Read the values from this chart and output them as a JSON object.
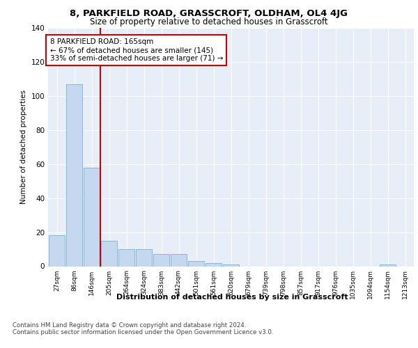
{
  "title_line1": "8, PARKFIELD ROAD, GRASSCROFT, OLDHAM, OL4 4JG",
  "title_line2": "Size of property relative to detached houses in Grasscroft",
  "xlabel": "Distribution of detached houses by size in Grasscroft",
  "ylabel": "Number of detached properties",
  "bar_color": "#c5d8f0",
  "bar_edge_color": "#7bafd4",
  "categories": [
    "27sqm",
    "86sqm",
    "146sqm",
    "205sqm",
    "264sqm",
    "324sqm",
    "383sqm",
    "442sqm",
    "501sqm",
    "561sqm",
    "620sqm",
    "679sqm",
    "739sqm",
    "798sqm",
    "857sqm",
    "917sqm",
    "976sqm",
    "1035sqm",
    "1094sqm",
    "1154sqm",
    "1213sqm"
  ],
  "values": [
    18,
    107,
    58,
    15,
    10,
    10,
    7,
    7,
    3,
    2,
    1,
    0,
    0,
    0,
    0,
    0,
    0,
    0,
    0,
    1,
    0
  ],
  "ylim": [
    0,
    140
  ],
  "yticks": [
    0,
    20,
    40,
    60,
    80,
    100,
    120,
    140
  ],
  "vline_color": "#cc0000",
  "vline_pos": 2.5,
  "annotation_text": "8 PARKFIELD ROAD: 165sqm\n← 67% of detached houses are smaller (145)\n33% of semi-detached houses are larger (71) →",
  "annotation_box_color": "#ffffff",
  "annotation_box_edge": "#cc0000",
  "footnote": "Contains HM Land Registry data © Crown copyright and database right 2024.\nContains public sector information licensed under the Open Government Licence v3.0.",
  "background_color": "#e8eef8",
  "grid_color": "#d0d8e8"
}
